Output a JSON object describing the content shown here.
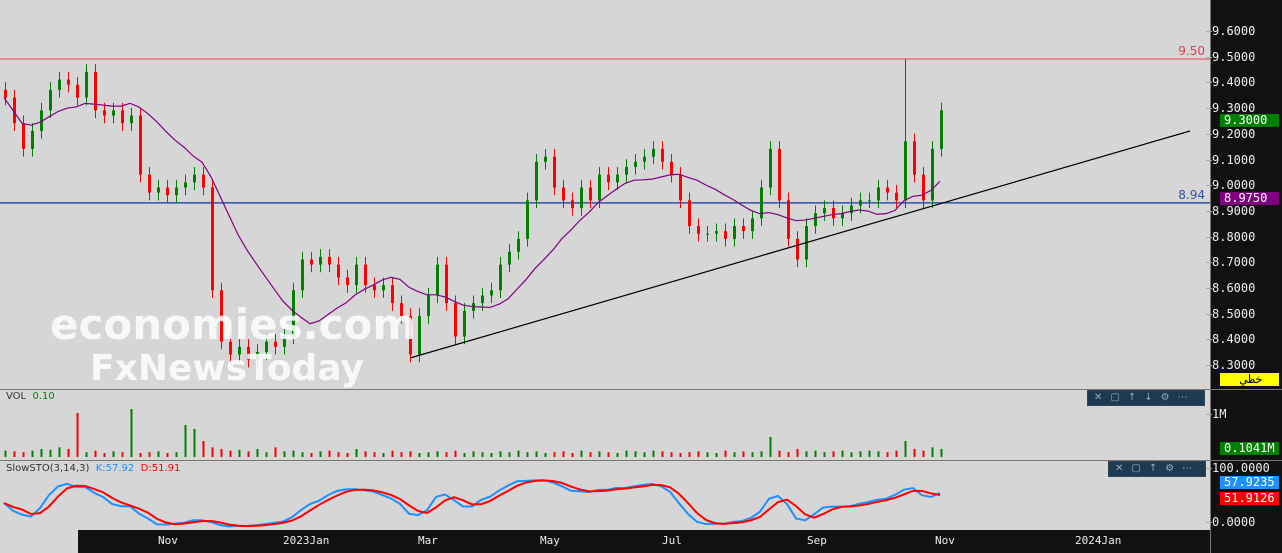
{
  "watermark": {
    "line1": "economies.com",
    "line2": "FxNewsToday"
  },
  "price_axis": {
    "ticks": [
      "9.6000",
      "9.5000",
      "9.4000",
      "9.3000",
      "9.2000",
      "9.1000",
      "9.0000",
      "8.9000",
      "8.8000",
      "8.7000",
      "8.6000",
      "8.5000",
      "8.4000",
      "8.3000"
    ],
    "last_price": "9.3000",
    "ma_value": "8.9750",
    "mode_label": "خطي"
  },
  "levels": {
    "resistance": "9.50",
    "support": "8.94"
  },
  "volume": {
    "label": "VOL",
    "value": "0.10",
    "axis_tick": "1M",
    "last": "0.1041M"
  },
  "sto": {
    "label": "SlowSTO(3,14,3)",
    "k_label": "K:57.92",
    "d_label": "D:51.91",
    "k_value": "57.9235",
    "d_value": "51.9126",
    "axis_top": "100.0000",
    "axis_bottom": "0.0000"
  },
  "toolbar_icons": [
    "close-icon",
    "maximize-icon",
    "up-icon",
    "down-icon",
    "settings-icon",
    "more-icon"
  ],
  "x_axis": [
    "Nov",
    "2023Jan",
    "Mar",
    "May",
    "Jul",
    "Sep",
    "Nov",
    "2024Jan"
  ],
  "colors": {
    "up": "#008000",
    "down": "#ff0000",
    "ma": "#800080",
    "resistance": "#e8707a",
    "support": "#3050b0",
    "k": "#1e90ff",
    "d": "#ff0000"
  },
  "chart_data": {
    "type": "candlestick",
    "ylim": [
      8.25,
      9.7
    ],
    "closes": [
      9.35,
      9.25,
      9.15,
      9.22,
      9.3,
      9.38,
      9.42,
      9.4,
      9.35,
      9.45,
      9.3,
      9.28,
      9.3,
      9.25,
      9.28,
      9.05,
      8.98,
      9.0,
      8.97,
      9.0,
      9.02,
      9.05,
      9.0,
      8.6,
      8.4,
      8.35,
      8.38,
      8.33,
      8.36,
      8.4,
      8.38,
      8.42,
      8.6,
      8.72,
      8.7,
      8.73,
      8.7,
      8.65,
      8.62,
      8.7,
      8.62,
      8.6,
      8.62,
      8.55,
      8.5,
      8.35,
      8.5,
      8.58,
      8.7,
      8.55,
      8.42,
      8.52,
      8.55,
      8.58,
      8.6,
      8.7,
      8.75,
      8.8,
      8.95,
      9.1,
      9.12,
      9.0,
      8.95,
      8.92,
      9.0,
      8.95,
      9.05,
      9.02,
      9.05,
      9.08,
      9.1,
      9.12,
      9.15,
      9.1,
      9.05,
      8.95,
      8.85,
      8.82,
      8.82,
      8.83,
      8.8,
      8.85,
      8.83,
      8.88,
      9.0,
      9.15,
      8.95,
      8.8,
      8.72,
      8.85,
      8.9,
      8.92,
      8.88,
      8.9,
      8.93,
      8.95,
      8.95,
      9.0,
      8.98,
      8.95,
      9.18,
      9.05,
      8.95,
      9.15,
      9.3
    ],
    "volumes": [
      0.08,
      0.07,
      0.06,
      0.08,
      0.1,
      0.09,
      0.12,
      0.1,
      0.55,
      0.06,
      0.08,
      0.05,
      0.07,
      0.06,
      0.6,
      0.05,
      0.06,
      0.07,
      0.05,
      0.06,
      0.4,
      0.35,
      0.2,
      0.12,
      0.1,
      0.08,
      0.09,
      0.07,
      0.1,
      0.06,
      0.12,
      0.07,
      0.08,
      0.06,
      0.05,
      0.07,
      0.08,
      0.06,
      0.05,
      0.1,
      0.07,
      0.06,
      0.05,
      0.08,
      0.06,
      0.07,
      0.05,
      0.06,
      0.07,
      0.06,
      0.08,
      0.05,
      0.07,
      0.06,
      0.05,
      0.07,
      0.06,
      0.08,
      0.06,
      0.07,
      0.05,
      0.06,
      0.07,
      0.05,
      0.08,
      0.06,
      0.07,
      0.06,
      0.05,
      0.08,
      0.07,
      0.06,
      0.08,
      0.07,
      0.06,
      0.05,
      0.06,
      0.07,
      0.06,
      0.05,
      0.08,
      0.06,
      0.07,
      0.06,
      0.07,
      0.25,
      0.08,
      0.06,
      0.1,
      0.07,
      0.08,
      0.06,
      0.07,
      0.08,
      0.06,
      0.07,
      0.08,
      0.07,
      0.06,
      0.08,
      0.2,
      0.1,
      0.08,
      0.12,
      0.1
    ],
    "spike_high": {
      "index": 100,
      "high": 9.5
    }
  }
}
